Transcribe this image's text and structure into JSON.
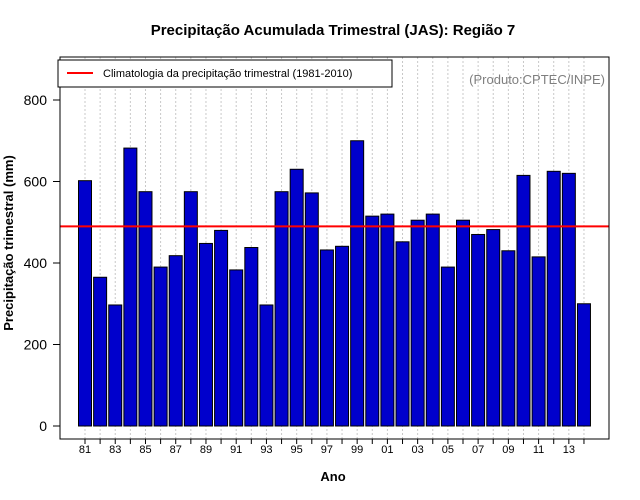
{
  "colors": {
    "bar_fill": "#0000cc",
    "bar_stroke": "#000000",
    "climatology_line": "#ff0000",
    "grid": "#c8c8c8",
    "credit": "#7f7f7f"
  },
  "chart_data": {
    "type": "bar",
    "title": "Precipitação Acumulada Trimestral (JAS): Região 7",
    "xlabel": "Ano",
    "ylabel": "Precipitação trimestral (mm)",
    "ylim": [
      0,
      900
    ],
    "yticks": [
      0,
      200,
      400,
      600,
      800
    ],
    "grid": "vertical dotted",
    "legend_position": "top-left",
    "credit": "(Produto:CPTEC/INPE)",
    "categories": [
      "81",
      "82",
      "83",
      "84",
      "85",
      "86",
      "87",
      "88",
      "89",
      "90",
      "91",
      "92",
      "93",
      "94",
      "95",
      "96",
      "97",
      "98",
      "99",
      "00",
      "01",
      "02",
      "03",
      "04",
      "05",
      "06",
      "07",
      "08",
      "09",
      "10",
      "11",
      "12",
      "13",
      "14"
    ],
    "xtick_labels": [
      "81",
      "83",
      "85",
      "87",
      "89",
      "91",
      "93",
      "95",
      "97",
      "99",
      "01",
      "03",
      "05",
      "07",
      "09",
      "11",
      "13"
    ],
    "values": [
      602,
      365,
      297,
      682,
      575,
      390,
      418,
      575,
      448,
      480,
      383,
      438,
      297,
      575,
      630,
      572,
      432,
      441,
      700,
      515,
      520,
      452,
      505,
      520,
      390,
      505,
      470,
      482,
      430,
      615,
      415,
      625,
      620,
      300
    ],
    "reference_line": {
      "name": "Climatologia da precipitação trimestral (1981-2010)",
      "value": 490
    }
  }
}
